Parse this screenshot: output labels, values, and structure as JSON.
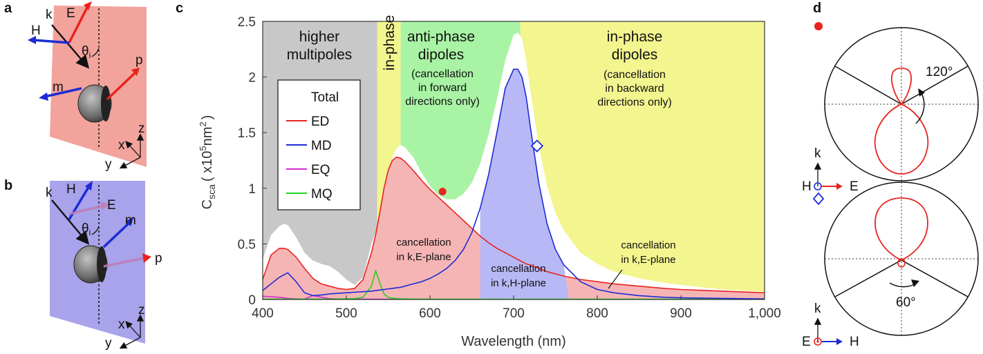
{
  "panels": {
    "a": "a",
    "b": "b",
    "c": "c",
    "d": "d"
  },
  "panel_a": {
    "k": "k",
    "E": "E",
    "H": "H",
    "theta": "θ",
    "theta_sub": "i",
    "p": "p",
    "m": "m",
    "x": "x",
    "y": "y",
    "z": "z"
  },
  "panel_b": {
    "k": "k",
    "E": "E",
    "H": "H",
    "theta": "θ",
    "theta_sub": "i",
    "p": "p",
    "m": "m",
    "x": "x",
    "y": "y",
    "z": "z"
  },
  "regions": {
    "higher_1": "higher",
    "higher_2": "multipoles",
    "inphase_narrow": "in-phase",
    "anti_1": "anti-phase",
    "anti_2": "dipoles",
    "anti_3": "(cancellation",
    "anti_4": "in forward",
    "anti_5": "directions only)",
    "inphase_1": "in-phase",
    "inphase_2": "dipoles",
    "inphase_3": "(cancellation",
    "inphase_4": "in backward",
    "inphase_5": "directions only)"
  },
  "cancellations": {
    "kE_left_1": "cancellation",
    "kE_left_2": "in k,E-plane",
    "kH_1": "cancellation",
    "kH_2": "in k,H-plane",
    "kE_right_1": "cancellation",
    "kE_right_2": "in k,E-plane"
  },
  "panel_d": {
    "top_angle": "120°",
    "bottom_angle": "60°",
    "k1": "k",
    "H1": "H",
    "E1": "E",
    "k2": "k",
    "E2": "E",
    "H2": "H"
  },
  "colors": {
    "total": "#111111",
    "ED": "#e8231e",
    "MD": "#1c2bd6",
    "EQ": "#d12bd1",
    "MQ": "#1fd21f",
    "gray_region": "#c8c8c8",
    "yellow_region": "#f3f58f",
    "green_region": "#a9f3a5",
    "red_fill": "#f6b5b5",
    "blue_fill": "#b8b8f6",
    "panel_a_bg": "#f2a39c",
    "panel_b_bg": "#a8a3ea"
  },
  "chart_data": {
    "type": "line",
    "xlabel": "Wavelength (nm)",
    "ylabel_main": "C",
    "ylabel_sub": "sca",
    "ylabel_unit_open": "( x10",
    "ylabel_unit_exp": "5",
    "ylabel_unit_nm": "nm",
    "ylabel_unit_nm_exp": "2",
    "ylabel_unit_close": ")",
    "xlim": [
      400,
      1000
    ],
    "ylim": [
      0,
      2.5
    ],
    "xticks": [
      "400",
      "500",
      "600",
      "700",
      "800",
      "900",
      "1,000"
    ],
    "yticks": [
      "0",
      "0.5",
      "1",
      "1.5",
      "2",
      "2.5"
    ],
    "legend": [
      "Total",
      "ED",
      "MD",
      "EQ",
      "MQ"
    ],
    "x": [
      400,
      410,
      420,
      425,
      430,
      440,
      450,
      460,
      470,
      480,
      490,
      500,
      510,
      520,
      530,
      535,
      540,
      545,
      550,
      555,
      560,
      565,
      570,
      580,
      590,
      600,
      610,
      620,
      630,
      640,
      650,
      660,
      670,
      680,
      690,
      700,
      705,
      710,
      715,
      720,
      730,
      740,
      750,
      760,
      780,
      800,
      820,
      850,
      880,
      900,
      950,
      1000
    ],
    "series": [
      {
        "name": "Total",
        "values": [
          0.36,
          0.58,
          0.66,
          0.68,
          0.67,
          0.56,
          0.42,
          0.35,
          0.32,
          0.3,
          0.25,
          0.18,
          0.13,
          0.2,
          0.5,
          0.6,
          0.72,
          0.95,
          1.15,
          1.28,
          1.36,
          1.39,
          1.37,
          1.28,
          1.14,
          1.02,
          0.94,
          0.9,
          0.9,
          0.95,
          1.05,
          1.22,
          1.48,
          1.8,
          2.15,
          2.38,
          2.4,
          2.35,
          2.15,
          1.88,
          1.38,
          1.02,
          0.78,
          0.62,
          0.42,
          0.32,
          0.25,
          0.19,
          0.15,
          0.13,
          0.09,
          0.07
        ]
      },
      {
        "name": "ED",
        "values": [
          0.18,
          0.4,
          0.46,
          0.46,
          0.45,
          0.38,
          0.28,
          0.19,
          0.14,
          0.12,
          0.1,
          0.09,
          0.1,
          0.18,
          0.42,
          0.58,
          0.78,
          1.0,
          1.16,
          1.25,
          1.28,
          1.27,
          1.24,
          1.16,
          1.07,
          0.99,
          0.92,
          0.85,
          0.78,
          0.71,
          0.64,
          0.57,
          0.51,
          0.46,
          0.42,
          0.38,
          0.36,
          0.34,
          0.32,
          0.31,
          0.28,
          0.25,
          0.23,
          0.21,
          0.18,
          0.16,
          0.14,
          0.12,
          0.1,
          0.09,
          0.075,
          0.06
        ]
      },
      {
        "name": "MD",
        "values": [
          0.08,
          0.14,
          0.2,
          0.22,
          0.24,
          0.16,
          0.06,
          0.035,
          0.04,
          0.05,
          0.055,
          0.06,
          0.065,
          0.07,
          0.075,
          0.08,
          0.085,
          0.09,
          0.095,
          0.1,
          0.105,
          0.11,
          0.12,
          0.14,
          0.16,
          0.19,
          0.23,
          0.28,
          0.35,
          0.45,
          0.6,
          0.82,
          1.12,
          1.5,
          1.9,
          2.07,
          2.07,
          2.0,
          1.82,
          1.55,
          1.05,
          0.68,
          0.45,
          0.31,
          0.16,
          0.09,
          0.06,
          0.035,
          0.02,
          0.015,
          0.01,
          0.005
        ]
      },
      {
        "name": "EQ",
        "values": [
          0.03,
          0.025,
          0.02,
          0.015,
          0.01,
          0.006,
          0.004,
          0.035,
          0.02,
          0.008,
          0.005,
          0.004,
          0.003,
          0.003,
          0.003,
          0.003,
          0.003,
          0.003,
          0.002,
          0.002,
          0.002,
          0.002,
          0.002,
          0.002,
          0.002,
          0.001,
          0.001,
          0.001,
          0.001,
          0.001,
          0.001,
          0.001,
          0.001,
          0.001,
          0.001,
          0.001,
          0.001,
          0.001,
          0.001,
          0.001,
          0.001,
          0.001,
          0.001,
          0.001,
          0.001,
          0.001,
          0.001,
          0.001,
          0.001,
          0.001,
          0.001,
          0.001
        ]
      },
      {
        "name": "MQ",
        "values": [
          0.004,
          0.004,
          0.004,
          0.004,
          0.004,
          0.004,
          0.004,
          0.004,
          0.004,
          0.004,
          0.005,
          0.006,
          0.008,
          0.02,
          0.12,
          0.26,
          0.15,
          0.05,
          0.02,
          0.012,
          0.008,
          0.006,
          0.005,
          0.004,
          0.004,
          0.003,
          0.003,
          0.003,
          0.003,
          0.003,
          0.003,
          0.003,
          0.003,
          0.003,
          0.003,
          0.003,
          0.003,
          0.003,
          0.003,
          0.003,
          0.003,
          0.003,
          0.003,
          0.003,
          0.003,
          0.003,
          0.003,
          0.003,
          0.003,
          0.003,
          0.003,
          0.003
        ]
      }
    ],
    "bands": [
      {
        "from": 400,
        "to": 537,
        "fill": "gray"
      },
      {
        "from": 537,
        "to": 565,
        "fill": "yellow"
      },
      {
        "from": 565,
        "to": 708,
        "fill": "green"
      },
      {
        "from": 708,
        "to": 1000,
        "fill": "yellow"
      }
    ],
    "markers": [
      {
        "shape": "circle",
        "x": 615,
        "y": 0.97,
        "color": "#e8231e"
      },
      {
        "shape": "diamond",
        "x": 728,
        "y": 1.38,
        "color": "#1c2bd6"
      }
    ]
  }
}
